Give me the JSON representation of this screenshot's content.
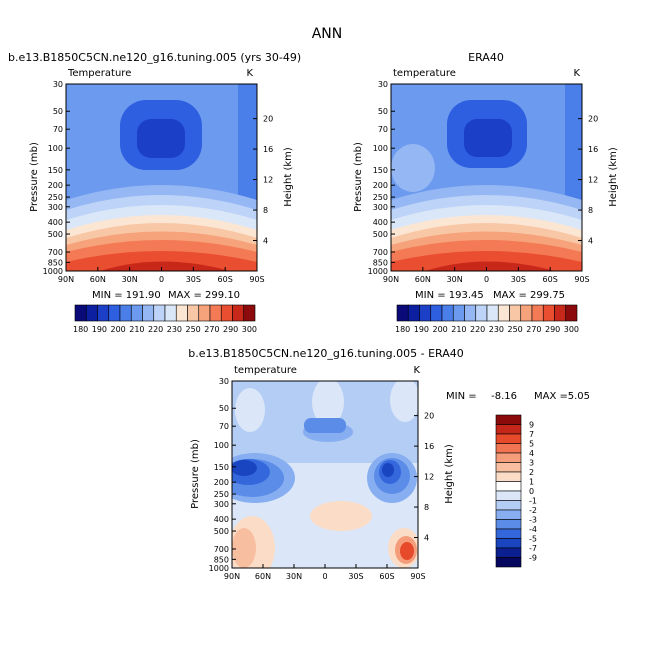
{
  "page_title": "ANN",
  "chart_data": [
    {
      "type": "heatmap",
      "title": "b.e13.B1850C5CN.ne120_g16.tuning.005 (yrs 30-49)",
      "subtitle": "Temperature",
      "units": "K",
      "xlabel": "",
      "ylabel": "Pressure (mb)",
      "ylabel_right": "Height (km)",
      "x_ticks": [
        "90N",
        "60N",
        "30N",
        "0",
        "30S",
        "60S",
        "90S"
      ],
      "y_ticks": [
        "30",
        "50",
        "70",
        "100",
        "150",
        "200",
        "250",
        "300",
        "400",
        "500",
        "700",
        "850",
        "1000"
      ],
      "y_right_ticks": [
        "20",
        "16",
        "12",
        "8",
        "4"
      ],
      "min_text": "MIN = 191.90",
      "max_text": "MAX = 299.10",
      "min": 191.9,
      "max": 299.1,
      "colorbar_ticks": [
        "180",
        "190",
        "200",
        "210",
        "220",
        "230",
        "250",
        "270",
        "290",
        "300"
      ]
    },
    {
      "type": "heatmap",
      "title": "ERA40",
      "subtitle": "temperature",
      "units": "K",
      "xlabel": "",
      "ylabel": "Pressure (mb)",
      "ylabel_right": "Height (km)",
      "x_ticks": [
        "90N",
        "60N",
        "30N",
        "0",
        "30S",
        "60S",
        "90S"
      ],
      "y_ticks": [
        "30",
        "50",
        "70",
        "100",
        "150",
        "200",
        "250",
        "300",
        "400",
        "500",
        "700",
        "850",
        "1000"
      ],
      "y_right_ticks": [
        "20",
        "16",
        "12",
        "8",
        "4"
      ],
      "min_text": "MIN = 193.45",
      "max_text": "MAX = 299.75",
      "min": 193.45,
      "max": 299.75,
      "colorbar_ticks": [
        "180",
        "190",
        "200",
        "210",
        "220",
        "230",
        "250",
        "270",
        "290",
        "300"
      ]
    },
    {
      "type": "heatmap",
      "title": "b.e13.B1850C5CN.ne120_g16.tuning.005 - ERA40",
      "subtitle": "temperature",
      "units": "K",
      "xlabel": "",
      "ylabel": "Pressure (mb)",
      "ylabel_right": "Height (km)",
      "x_ticks": [
        "90N",
        "60N",
        "30N",
        "0",
        "30S",
        "60S",
        "90S"
      ],
      "y_ticks": [
        "30",
        "50",
        "70",
        "100",
        "150",
        "200",
        "250",
        "300",
        "400",
        "500",
        "700",
        "850",
        "1000"
      ],
      "y_right_ticks": [
        "20",
        "16",
        "12",
        "8",
        "4"
      ],
      "min_label": "MIN =",
      "min_value": "-8.16",
      "max_label": "MAX =",
      "max_value": "5.05",
      "min": -8.16,
      "max": 5.05,
      "colorbar_ticks": [
        "9",
        "7",
        "5",
        "4",
        "3",
        "2",
        "1",
        "0",
        "-1",
        "-2",
        "-3",
        "-4",
        "-5",
        "-7",
        "-9"
      ]
    }
  ],
  "colors": {
    "abs_scale": [
      "#0a0a78",
      "#0b1fa0",
      "#1c3fc8",
      "#2e5fe0",
      "#4a7ee8",
      "#6c9aef",
      "#95b7f3",
      "#bdd3f7",
      "#dae7f9",
      "#fbe6d4",
      "#f8c7a6",
      "#f6a27a",
      "#f37a55",
      "#ea4e30",
      "#c8281a",
      "#8c0a0c"
    ],
    "diff_scale": [
      "#8b0a0a",
      "#c42619",
      "#e64a2b",
      "#f27553",
      "#f59c7a",
      "#f7bea0",
      "#fadcc7",
      "#ffffff",
      "#dbe7f8",
      "#b4cdf4",
      "#86aef0",
      "#5a8ce8",
      "#3467dc",
      "#1a45c0",
      "#0b1f90",
      "#05075e"
    ]
  }
}
